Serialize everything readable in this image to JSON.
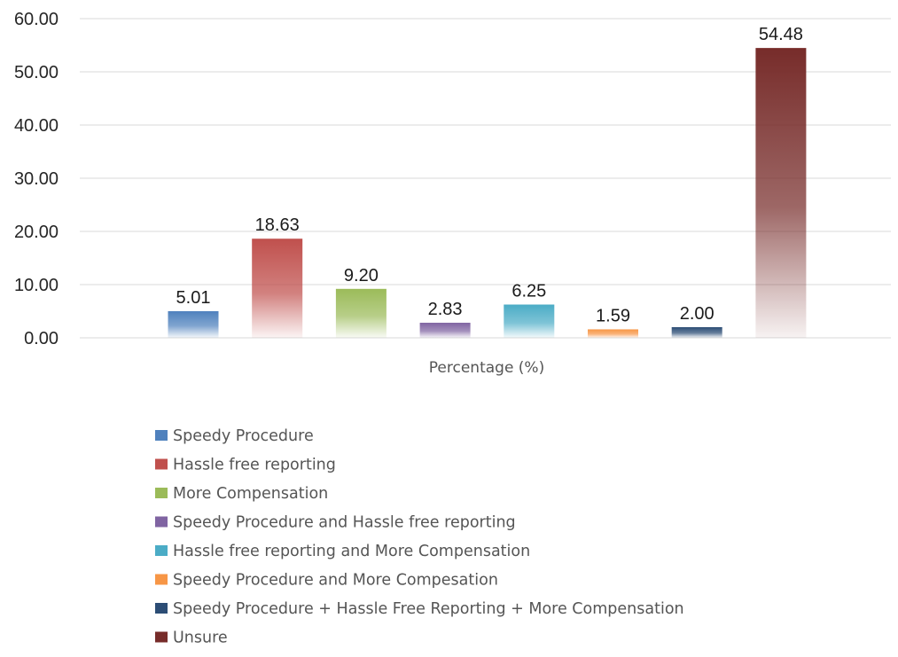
{
  "chart_data": {
    "type": "bar",
    "xlabel": "Percentage (%)",
    "ylabel": "",
    "ylim": [
      0,
      60
    ],
    "yticks": [
      "0.00",
      "10.00",
      "20.00",
      "30.00",
      "40.00",
      "50.00",
      "60.00"
    ],
    "grid": true,
    "legend_position": "bottom",
    "series": [
      {
        "name": "Speedy Procedure",
        "value": 5.01,
        "label": "5.01",
        "color": "#4f81bd"
      },
      {
        "name": "Hassle free reporting",
        "value": 18.63,
        "label": "18.63",
        "color": "#c0504d"
      },
      {
        "name": "More Compensation",
        "value": 9.2,
        "label": "9.20",
        "color": "#9bbb59"
      },
      {
        "name": "Speedy Procedure and Hassle free reporting",
        "value": 2.83,
        "label": "2.83",
        "color": "#8064a2"
      },
      {
        "name": "Hassle free reporting and More Compensation",
        "value": 6.25,
        "label": "6.25",
        "color": "#4bacc6"
      },
      {
        "name": "Speedy Procedure and More Compesation",
        "value": 1.59,
        "label": "1.59",
        "color": "#f79646"
      },
      {
        "name": "Speedy Procedure + Hassle Free Reporting + More Compensation",
        "value": 2.0,
        "label": "2.00",
        "color": "#2c4d75"
      },
      {
        "name": "Unsure",
        "value": 54.48,
        "label": "54.48",
        "color": "#772c2a"
      }
    ]
  }
}
